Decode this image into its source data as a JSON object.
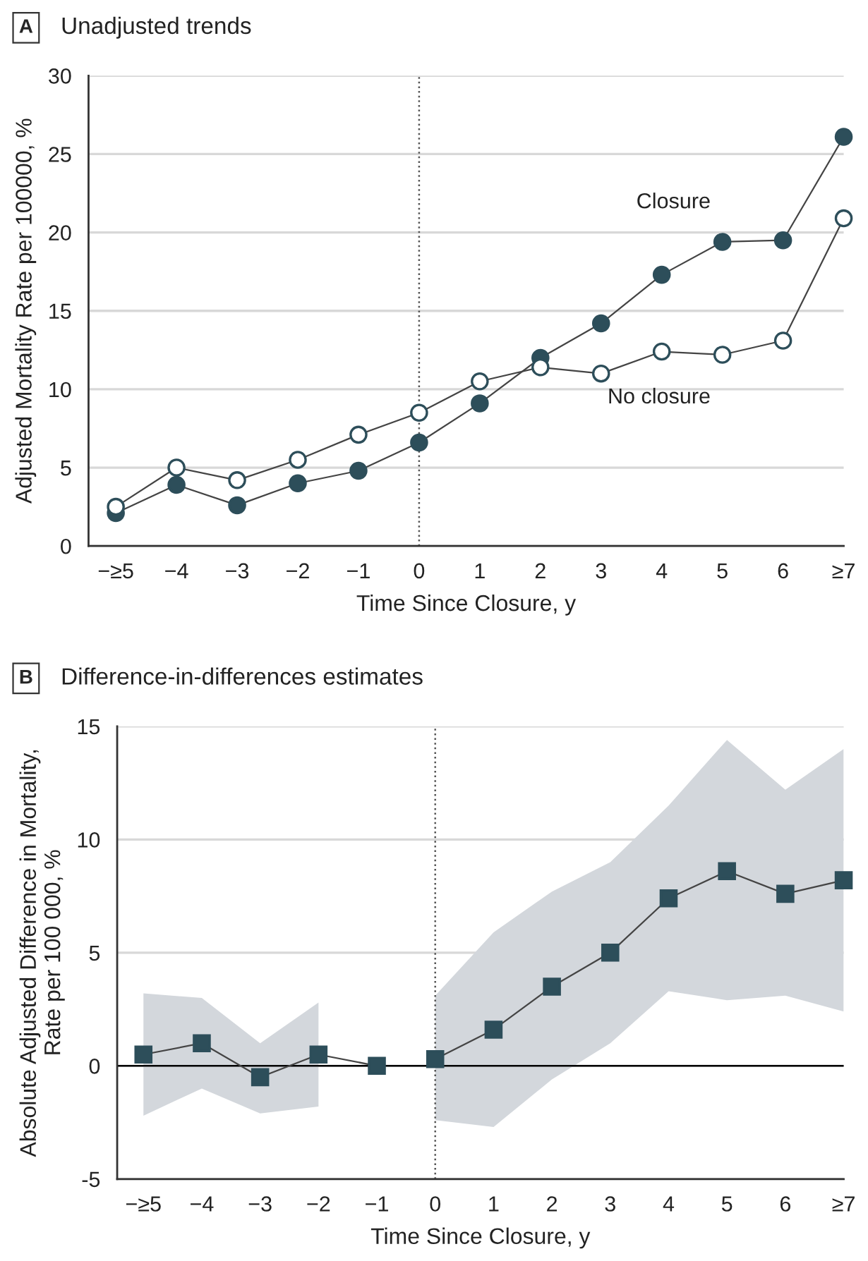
{
  "chart_data": [
    {
      "type": "line",
      "title": "Unadjusted trends",
      "annotations": [
        "A"
      ],
      "xlabel": "Time Since Closure, y",
      "ylabel": "Adjusted Mortality Rate per 100000, %",
      "categories": [
        "−≥5",
        "−4",
        "−3",
        "−2",
        "−1",
        "0",
        "1",
        "2",
        "3",
        "4",
        "5",
        "6",
        "≥7"
      ],
      "series": [
        {
          "name": "Closure",
          "color": "#2d4e5a",
          "values": [
            2.1,
            3.9,
            2.6,
            4.0,
            4.8,
            6.6,
            9.1,
            12.0,
            14.2,
            17.3,
            19.4,
            19.5,
            26.1
          ]
        },
        {
          "name": "No closure",
          "color": "#ffffff",
          "values": [
            2.5,
            5.0,
            4.2,
            5.5,
            7.1,
            8.5,
            10.5,
            11.4,
            11.0,
            12.4,
            12.2,
            13.1,
            20.9
          ]
        }
      ],
      "ylim": [
        0,
        30
      ],
      "yticks": [
        0,
        5,
        10,
        15,
        20,
        25,
        30
      ],
      "grid": "y",
      "marker": "circle",
      "line_style": "solid",
      "legend": false,
      "ref_lines": [
        {
          "axis": "x",
          "value": "0",
          "line_style": "dotted",
          "color": "#555555"
        }
      ]
    },
    {
      "type": "line",
      "title": "Difference-in-differences estimates",
      "annotations": [
        "B"
      ],
      "xlabel": "Time Since Closure, y",
      "ylabel": "Absolute Adjusted Difference in Mortality,\nRate per 100 000, %",
      "categories": [
        "−≥5",
        "−4",
        "−3",
        "−2",
        "−1",
        "0",
        "1",
        "2",
        "3",
        "4",
        "5",
        "6",
        "≥7"
      ],
      "series": [
        {
          "color": "#2d4e5a",
          "values": [
            0.5,
            1.0,
            -0.5,
            0.5,
            0.0,
            null,
            null,
            null,
            null,
            null,
            null,
            null,
            null
          ],
          "lower": [
            -2.2,
            -1.0,
            -2.1,
            -1.8,
            null,
            null,
            null,
            null,
            null,
            null,
            null,
            null,
            null
          ],
          "upper": [
            3.2,
            3.0,
            1.0,
            2.8,
            null,
            null,
            null,
            null,
            null,
            null,
            null,
            null,
            null
          ]
        },
        {
          "color": "#2d4e5a",
          "values": [
            null,
            null,
            null,
            null,
            null,
            0.3,
            1.6,
            3.5,
            5.0,
            7.4,
            8.6,
            7.6,
            8.2
          ],
          "lower": [
            null,
            null,
            null,
            null,
            null,
            -2.4,
            -2.7,
            -0.6,
            1.0,
            3.3,
            2.9,
            3.1,
            2.4
          ],
          "upper": [
            null,
            null,
            null,
            null,
            null,
            3.1,
            5.9,
            7.7,
            9.0,
            11.5,
            14.4,
            12.2,
            14.0
          ]
        }
      ],
      "ylim": [
        -5,
        15
      ],
      "yticks": [
        {
          "value": -5,
          "label": "-5"
        },
        0,
        5,
        10,
        15
      ],
      "grid": "y",
      "marker": "square",
      "line_style": "solid",
      "legend": false,
      "ref_lines": [
        {
          "axis": "x",
          "value": "0",
          "line_style": "dotted",
          "color": "#555555"
        },
        {
          "axis": "y",
          "value": 0,
          "line_style": "solid",
          "color": "#000000"
        }
      ]
    }
  ]
}
